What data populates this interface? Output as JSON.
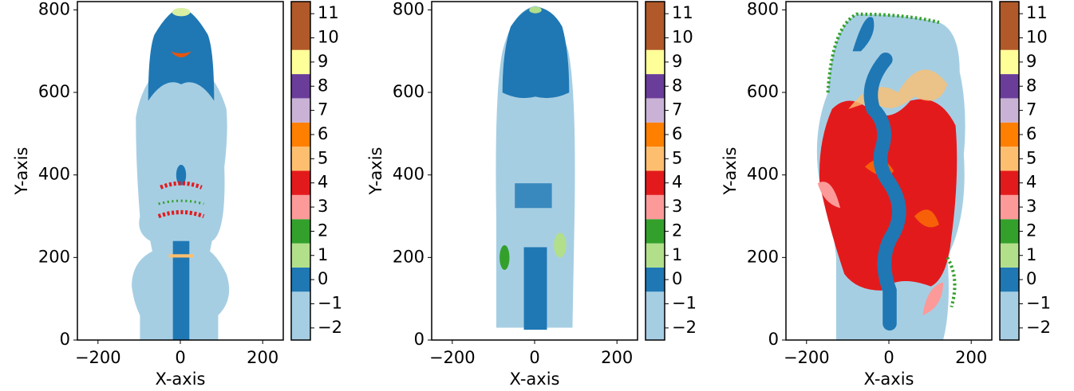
{
  "chart_data": [
    {
      "type": "image",
      "xlabel": "X-axis",
      "ylabel": "Y-axis",
      "xlim": [
        -250,
        250
      ],
      "ylim": [
        0,
        820
      ],
      "xticks": [
        {
          "value": -200,
          "label": "−200"
        },
        0,
        200
      ],
      "yticks": [
        0,
        200,
        400,
        600,
        800
      ],
      "colorbar": {
        "bounds": [
          -2.5,
          -0.5,
          0.5,
          1.5,
          2.5,
          3.5,
          4.5,
          5.5,
          6.5,
          7.5,
          8.5,
          9.5,
          11.5
        ],
        "colors": [
          "#a6cee3",
          "#1f78b4",
          "#b2df8a",
          "#33a02c",
          "#fb9a99",
          "#e31a1c",
          "#fdbf6f",
          "#ff7f00",
          "#cab2d6",
          "#6a3d9a",
          "#ffff99",
          "#b15928"
        ],
        "ticks": [
          {
            "value": -2,
            "label": "−2"
          },
          {
            "value": -1,
            "label": "−1"
          },
          0,
          1,
          2,
          3,
          4,
          5,
          6,
          7,
          8,
          9,
          10,
          11
        ]
      }
    },
    {
      "type": "image",
      "xlabel": "X-axis",
      "ylabel": "Y-axis",
      "xlim": [
        -250,
        250
      ],
      "ylim": [
        0,
        820
      ],
      "xticks": [
        {
          "value": -200,
          "label": "−200"
        },
        0,
        200
      ],
      "yticks": [
        0,
        200,
        400,
        600,
        800
      ],
      "colorbar": {
        "bounds": [
          -2.5,
          -0.5,
          0.5,
          1.5,
          2.5,
          3.5,
          4.5,
          5.5,
          6.5,
          7.5,
          8.5,
          9.5,
          11.5
        ],
        "colors": [
          "#a6cee3",
          "#1f78b4",
          "#b2df8a",
          "#33a02c",
          "#fb9a99",
          "#e31a1c",
          "#fdbf6f",
          "#ff7f00",
          "#cab2d6",
          "#6a3d9a",
          "#ffff99",
          "#b15928"
        ],
        "ticks": [
          {
            "value": -2,
            "label": "−2"
          },
          {
            "value": -1,
            "label": "−1"
          },
          0,
          1,
          2,
          3,
          4,
          5,
          6,
          7,
          8,
          9,
          10,
          11
        ]
      }
    },
    {
      "type": "image",
      "xlabel": "X-axis",
      "ylabel": "Y-axis",
      "xlim": [
        -250,
        250
      ],
      "ylim": [
        0,
        820
      ],
      "xticks": [
        {
          "value": -200,
          "label": "−200"
        },
        0,
        200
      ],
      "yticks": [
        0,
        200,
        400,
        600,
        800
      ],
      "colorbar": {
        "bounds": [
          -2.5,
          -0.5,
          0.5,
          1.5,
          2.5,
          3.5,
          4.5,
          5.5,
          6.5,
          7.5,
          8.5,
          9.5,
          11.5
        ],
        "colors": [
          "#a6cee3",
          "#1f78b4",
          "#b2df8a",
          "#33a02c",
          "#fb9a99",
          "#e31a1c",
          "#fdbf6f",
          "#ff7f00",
          "#cab2d6",
          "#6a3d9a",
          "#ffff99",
          "#b15928"
        ],
        "ticks": [
          {
            "value": -2,
            "label": "−2"
          },
          {
            "value": -1,
            "label": "−1"
          },
          0,
          1,
          2,
          3,
          4,
          5,
          6,
          7,
          8,
          9,
          10,
          11
        ]
      }
    }
  ]
}
